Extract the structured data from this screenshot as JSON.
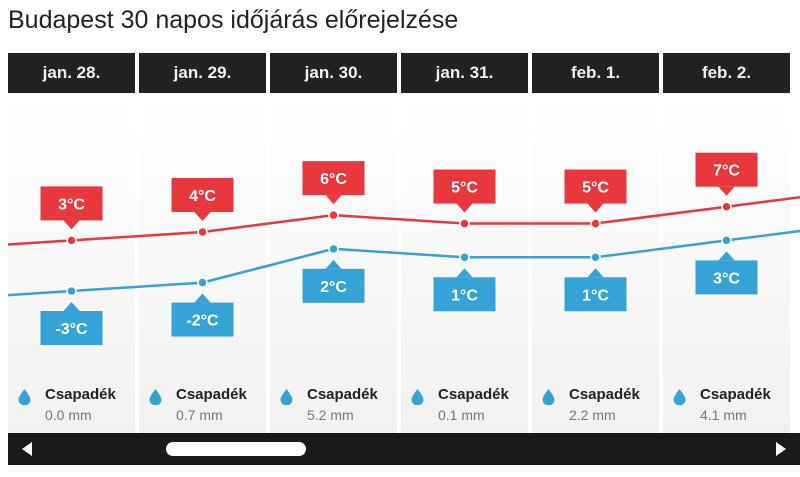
{
  "page": {
    "title": "Budapest 30 napos időjárás előrejelzése"
  },
  "days": [
    {
      "label": "jan. 28.",
      "precip_label": "Csapadék",
      "precip_value": "0.0 mm"
    },
    {
      "label": "jan. 29.",
      "precip_label": "Csapadék",
      "precip_value": "0.7 mm"
    },
    {
      "label": "jan. 30.",
      "precip_label": "Csapadék",
      "precip_value": "5.2 mm"
    },
    {
      "label": "jan. 31.",
      "precip_label": "Csapadék",
      "precip_value": "0.1 mm"
    },
    {
      "label": "feb. 1.",
      "precip_label": "Csapadék",
      "precip_value": "2.2 mm"
    },
    {
      "label": "feb. 2.",
      "precip_label": "Csapadék",
      "precip_value": "4.1 mm"
    }
  ],
  "chart_data": {
    "type": "line",
    "categories": [
      "jan. 28.",
      "jan. 29.",
      "jan. 30.",
      "jan. 31.",
      "feb. 1.",
      "feb. 2."
    ],
    "series": [
      {
        "values": [
          3,
          4,
          6,
          5,
          5,
          7
        ],
        "labels": [
          "3°C",
          "4°C",
          "6°C",
          "5°C",
          "5°C",
          "7°C"
        ],
        "color": "#e8383d"
      },
      {
        "values": [
          -3,
          -2,
          2,
          1,
          1,
          3
        ],
        "labels": [
          "-3°C",
          "-2°C",
          "2°C",
          "1°C",
          "1°C",
          "3°C"
        ],
        "color": "#35a3d6"
      }
    ],
    "unit": "°C",
    "grid": false
  },
  "colors": {
    "header_bg": "#222222",
    "max_line": "#e8383d",
    "min_line": "#35a3d6",
    "drop": "#35a3d6",
    "scrollbar_bg": "#1a1a1a"
  },
  "icons": {
    "precip": "water-drop-icon",
    "scroll_left": "arrow-left-icon",
    "scroll_right": "arrow-right-icon"
  }
}
